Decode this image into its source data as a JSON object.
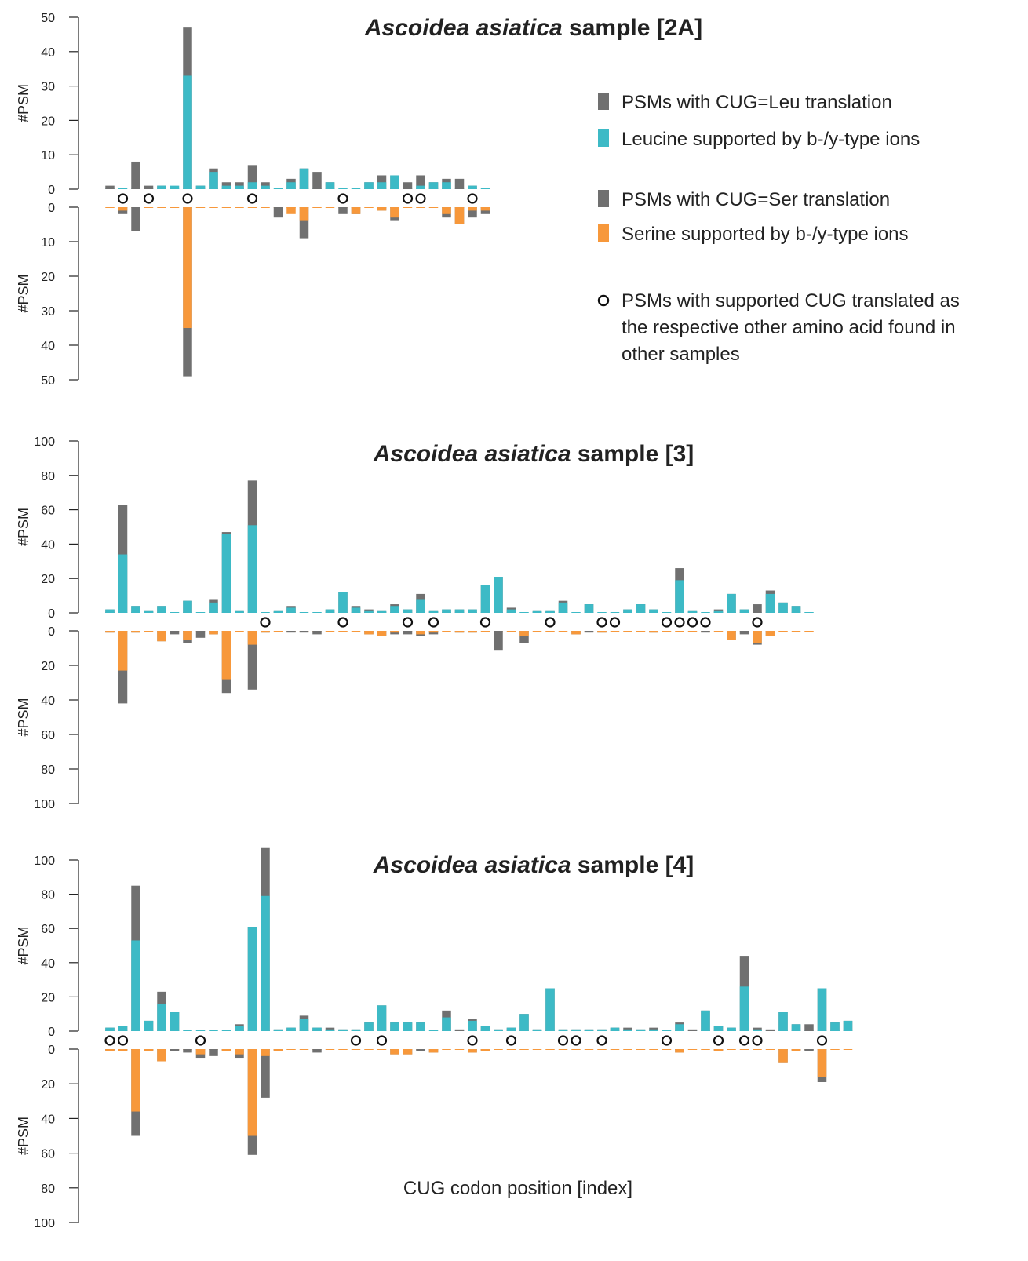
{
  "figure": {
    "xlabel": "CUG codon position [index]"
  },
  "legend": {
    "items": [
      {
        "key": "leu_total",
        "label": "PSMs with CUG=Leu translation",
        "color": "#707070",
        "marker": "square"
      },
      {
        "key": "leu_supported",
        "label": "Leucine supported by b-/y-type ions",
        "color": "#3dbac6",
        "marker": "square"
      },
      {
        "key": "ser_total",
        "label": "PSMs with CUG=Ser translation",
        "color": "#707070",
        "marker": "square"
      },
      {
        "key": "ser_supported",
        "label": "Serine supported by b-/y-type ions",
        "color": "#f7983b",
        "marker": "square"
      },
      {
        "key": "other_sample",
        "label_lines": [
          "PSMs with supported CUG translated as",
          "the respective other amino acid found in",
          "other samples"
        ],
        "marker": "circle"
      }
    ]
  },
  "colors": {
    "total": "#707070",
    "leu": "#3dbac6",
    "ser": "#f7983b",
    "baseline_leu": "#3dbac6",
    "baseline_ser": "#f7983b"
  },
  "chart_data": [
    {
      "type": "bar",
      "title_italic": "Ascoidea asiatica",
      "title_rest": " sample [2A]",
      "ylabel": "#PSM",
      "ylim": [
        0,
        50
      ],
      "yticks": [
        0,
        10,
        20,
        30,
        40,
        50
      ],
      "n_positions": 30,
      "leu_total": [
        1,
        0,
        8,
        1,
        1,
        0,
        47,
        1,
        6,
        2,
        2,
        7,
        2,
        0,
        3,
        6,
        5,
        2,
        0,
        0,
        2,
        4,
        4,
        2,
        4,
        2,
        3,
        3,
        1,
        0
      ],
      "leu_supported": [
        0,
        0,
        0,
        0,
        1,
        1,
        33,
        1,
        5,
        1,
        1,
        2,
        1,
        0,
        2,
        6,
        0,
        2,
        0,
        0,
        2,
        2,
        4,
        0,
        1,
        2,
        2,
        0,
        1,
        0
      ],
      "ser_total": [
        0,
        2,
        7,
        0,
        0,
        0,
        49,
        0,
        0,
        0,
        0,
        0,
        0,
        3,
        0,
        9,
        0,
        0,
        2,
        2,
        0,
        1,
        4,
        0,
        0,
        0,
        3,
        5,
        3,
        2
      ],
      "ser_supported": [
        0,
        1,
        0,
        0,
        0,
        0,
        35,
        0,
        0,
        0,
        0,
        0,
        0,
        0,
        2,
        4,
        0,
        0,
        0,
        2,
        0,
        1,
        3,
        0,
        0,
        0,
        2,
        5,
        1,
        1
      ],
      "circles": [
        1,
        3,
        6,
        11,
        18,
        23,
        24,
        28
      ]
    },
    {
      "type": "bar",
      "title_italic": "Ascoidea asiatica",
      "title_rest": " sample [3]",
      "ylabel": "#PSM",
      "ylim": [
        0,
        100
      ],
      "yticks": [
        0,
        20,
        40,
        60,
        80,
        100
      ],
      "n_positions": 55,
      "leu_total": [
        2,
        63,
        4,
        1,
        4,
        0,
        7,
        0,
        8,
        47,
        1,
        77,
        0,
        1,
        4,
        0,
        0,
        2,
        12,
        4,
        2,
        1,
        5,
        2,
        11,
        1,
        2,
        2,
        2,
        16,
        21,
        3,
        0,
        1,
        1,
        7,
        0,
        5,
        0,
        0,
        2,
        5,
        2,
        0,
        26,
        1,
        0,
        2,
        11,
        2,
        5,
        13,
        6,
        4,
        0
      ],
      "leu_supported": [
        2,
        34,
        4,
        1,
        4,
        0,
        7,
        0,
        6,
        46,
        1,
        51,
        0,
        1,
        3,
        0,
        0,
        2,
        12,
        3,
        1,
        1,
        4,
        2,
        8,
        1,
        2,
        2,
        2,
        16,
        21,
        2,
        0,
        1,
        1,
        6,
        0,
        5,
        0,
        0,
        2,
        5,
        2,
        0,
        19,
        1,
        0,
        1,
        11,
        2,
        0,
        11,
        6,
        4,
        0
      ],
      "ser_total": [
        1,
        42,
        1,
        0,
        6,
        2,
        7,
        4,
        2,
        36,
        0,
        34,
        1,
        0,
        1,
        1,
        2,
        0,
        0,
        0,
        2,
        3,
        2,
        2,
        3,
        2,
        0,
        1,
        1,
        0,
        11,
        0,
        7,
        0,
        0,
        0,
        2,
        1,
        1,
        0,
        0,
        0,
        1,
        0,
        0,
        0,
        1,
        0,
        5,
        2,
        8,
        3,
        0,
        0,
        0
      ],
      "ser_supported": [
        1,
        23,
        1,
        0,
        6,
        0,
        5,
        0,
        2,
        28,
        0,
        8,
        1,
        0,
        0,
        0,
        0,
        0,
        0,
        0,
        2,
        3,
        1,
        0,
        2,
        1,
        0,
        1,
        1,
        0,
        0,
        0,
        3,
        0,
        0,
        0,
        2,
        0,
        1,
        0,
        0,
        0,
        1,
        0,
        0,
        0,
        0,
        0,
        5,
        0,
        7,
        3,
        0,
        0,
        0
      ],
      "circles": [
        12,
        18,
        23,
        25,
        29,
        34,
        38,
        39,
        43,
        44,
        45,
        46,
        50
      ]
    },
    {
      "type": "bar",
      "title_italic": "Ascoidea asiatica",
      "title_rest": " sample [4]",
      "ylabel": "#PSM",
      "ylim": [
        0,
        100
      ],
      "yticks": [
        0,
        20,
        40,
        60,
        80,
        100
      ],
      "n_positions": 58,
      "leu_total": [
        2,
        3,
        85,
        6,
        23,
        11,
        0,
        0,
        0,
        0,
        4,
        61,
        107,
        1,
        2,
        9,
        2,
        2,
        1,
        1,
        5,
        15,
        5,
        5,
        5,
        0,
        12,
        1,
        7,
        3,
        1,
        2,
        10,
        1,
        25,
        1,
        1,
        1,
        1,
        2,
        2,
        1,
        2,
        0,
        5,
        1,
        12,
        3,
        2,
        44,
        2,
        1,
        11,
        4,
        4,
        25,
        5,
        6
      ],
      "leu_supported": [
        2,
        3,
        53,
        6,
        16,
        11,
        0,
        0,
        0,
        0,
        3,
        61,
        79,
        1,
        2,
        7,
        2,
        1,
        1,
        1,
        5,
        15,
        5,
        5,
        5,
        0,
        8,
        0,
        6,
        3,
        1,
        2,
        10,
        1,
        25,
        1,
        1,
        1,
        1,
        2,
        1,
        1,
        1,
        0,
        4,
        0,
        12,
        3,
        2,
        26,
        1,
        0,
        11,
        4,
        0,
        25,
        5,
        6
      ],
      "ser_total": [
        1,
        1,
        50,
        1,
        7,
        1,
        2,
        5,
        4,
        1,
        5,
        61,
        28,
        1,
        0,
        0,
        2,
        0,
        0,
        0,
        0,
        0,
        3,
        3,
        1,
        2,
        0,
        0,
        2,
        1,
        0,
        0,
        0,
        0,
        0,
        0,
        0,
        0,
        0,
        0,
        0,
        0,
        0,
        0,
        2,
        0,
        0,
        1,
        0,
        0,
        0,
        0,
        8,
        1,
        1,
        19,
        0,
        0
      ],
      "ser_supported": [
        1,
        1,
        36,
        1,
        7,
        0,
        0,
        3,
        0,
        1,
        3,
        50,
        4,
        1,
        0,
        0,
        0,
        0,
        0,
        0,
        0,
        0,
        3,
        3,
        0,
        2,
        0,
        0,
        2,
        1,
        0,
        0,
        0,
        0,
        0,
        0,
        0,
        0,
        0,
        0,
        0,
        0,
        0,
        0,
        2,
        0,
        0,
        1,
        0,
        0,
        0,
        0,
        8,
        1,
        0,
        16,
        0,
        0
      ],
      "circles": [
        0,
        1,
        7,
        19,
        21,
        28,
        31,
        35,
        36,
        38,
        43,
        47,
        49,
        50,
        55
      ]
    }
  ]
}
